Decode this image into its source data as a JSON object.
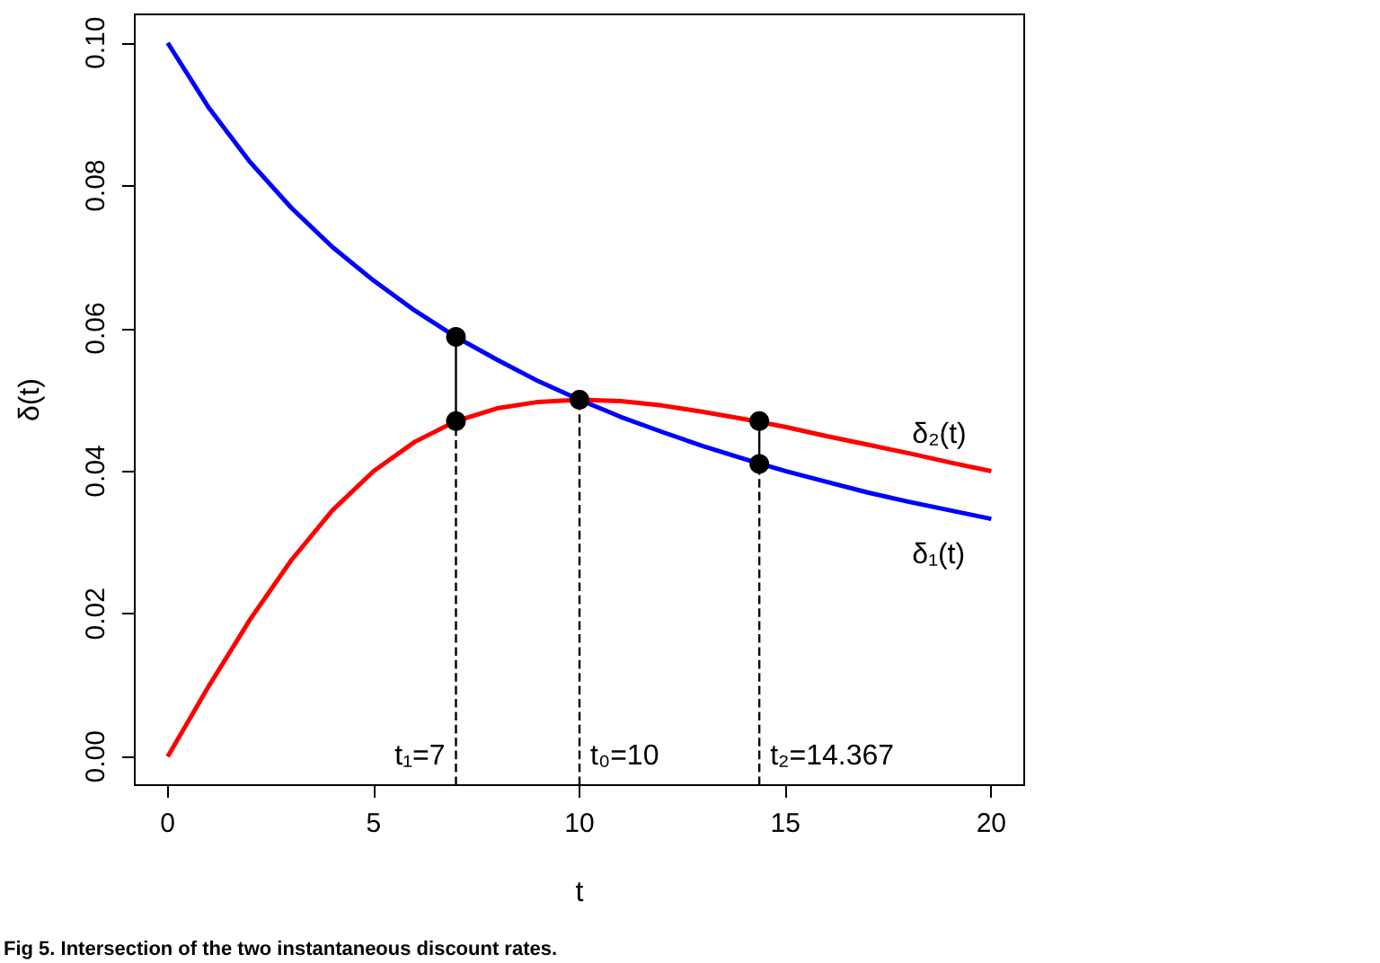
{
  "chart_data": {
    "type": "line",
    "xlabel": "t",
    "ylabel": "δ(t)",
    "xlim": [
      -0.8,
      20.8
    ],
    "ylim": [
      -0.004,
      0.104
    ],
    "xticks": [
      0,
      5,
      10,
      15,
      20
    ],
    "yticks": [
      {
        "value": 0,
        "label": "0.00"
      },
      {
        "value": 0.02,
        "label": "0.02"
      },
      {
        "value": 0.04,
        "label": "0.04"
      },
      {
        "value": 0.06,
        "label": "0.06"
      },
      {
        "value": 0.08,
        "label": "0.08"
      },
      {
        "value": 0.1,
        "label": "0.10"
      }
    ],
    "grid": false,
    "legend": false,
    "marker": "none",
    "series": [
      {
        "name": "δ₁(t)",
        "color": "#0000ff",
        "x": [
          0,
          1,
          2,
          3,
          4,
          5,
          6,
          7,
          8,
          9,
          10,
          11,
          12,
          13,
          14,
          15,
          16,
          17,
          18,
          19,
          20
        ],
        "values": [
          0.1,
          0.0909,
          0.0833,
          0.0769,
          0.0714,
          0.0667,
          0.0625,
          0.0588,
          0.0556,
          0.0526,
          0.05,
          0.0476,
          0.0455,
          0.0435,
          0.0417,
          0.04,
          0.0385,
          0.037,
          0.0357,
          0.0345,
          0.0333
        ]
      },
      {
        "name": "δ₂(t)",
        "color": "#ff0000",
        "x": [
          0,
          1,
          2,
          3,
          4,
          5,
          6,
          7,
          8,
          9,
          10,
          11,
          12,
          13,
          14,
          15,
          16,
          17,
          18,
          19,
          20
        ],
        "values": [
          0,
          0.0099,
          0.0192,
          0.0275,
          0.0345,
          0.04,
          0.0441,
          0.047,
          0.0488,
          0.0497,
          0.05,
          0.0498,
          0.0492,
          0.0483,
          0.0473,
          0.0462,
          0.0449,
          0.0437,
          0.0425,
          0.0412,
          0.04
        ]
      },
      {
        "type": "line",
        "color": "#000000",
        "line_style": "dashed",
        "x": [
          7,
          7
        ],
        "values": [
          -0.004,
          0.047
        ]
      },
      {
        "type": "line",
        "color": "#000000",
        "line_style": "dashed",
        "x": [
          10,
          10
        ],
        "values": [
          -0.004,
          0.05
        ]
      },
      {
        "type": "line",
        "color": "#000000",
        "line_style": "dashed",
        "x": [
          14.367,
          14.367
        ],
        "values": [
          -0.004,
          0.041
        ]
      },
      {
        "type": "line",
        "color": "#000000",
        "line_style": "solid",
        "x": [
          7,
          7
        ],
        "values": [
          0.047,
          0.0588
        ]
      },
      {
        "type": "line",
        "color": "#000000",
        "line_style": "solid",
        "x": [
          14.367,
          14.367
        ],
        "values": [
          0.041,
          0.047
        ]
      },
      {
        "type": "scatter",
        "color": "#000000",
        "marker": "circle",
        "x": [
          7,
          7,
          10,
          14.367,
          14.367
        ],
        "values": [
          0.0588,
          0.047,
          0.05,
          0.047,
          0.041
        ]
      }
    ],
    "annotations": [
      {
        "text": "t₁=7",
        "x": 7,
        "y": 0
      },
      {
        "text": "t₀=10",
        "x": 10,
        "y": 0
      },
      {
        "text": "t₂=14.367",
        "x": 14.367,
        "y": 0
      },
      "Fig 5. Intersection of the two instantaneous discount rates."
    ]
  }
}
